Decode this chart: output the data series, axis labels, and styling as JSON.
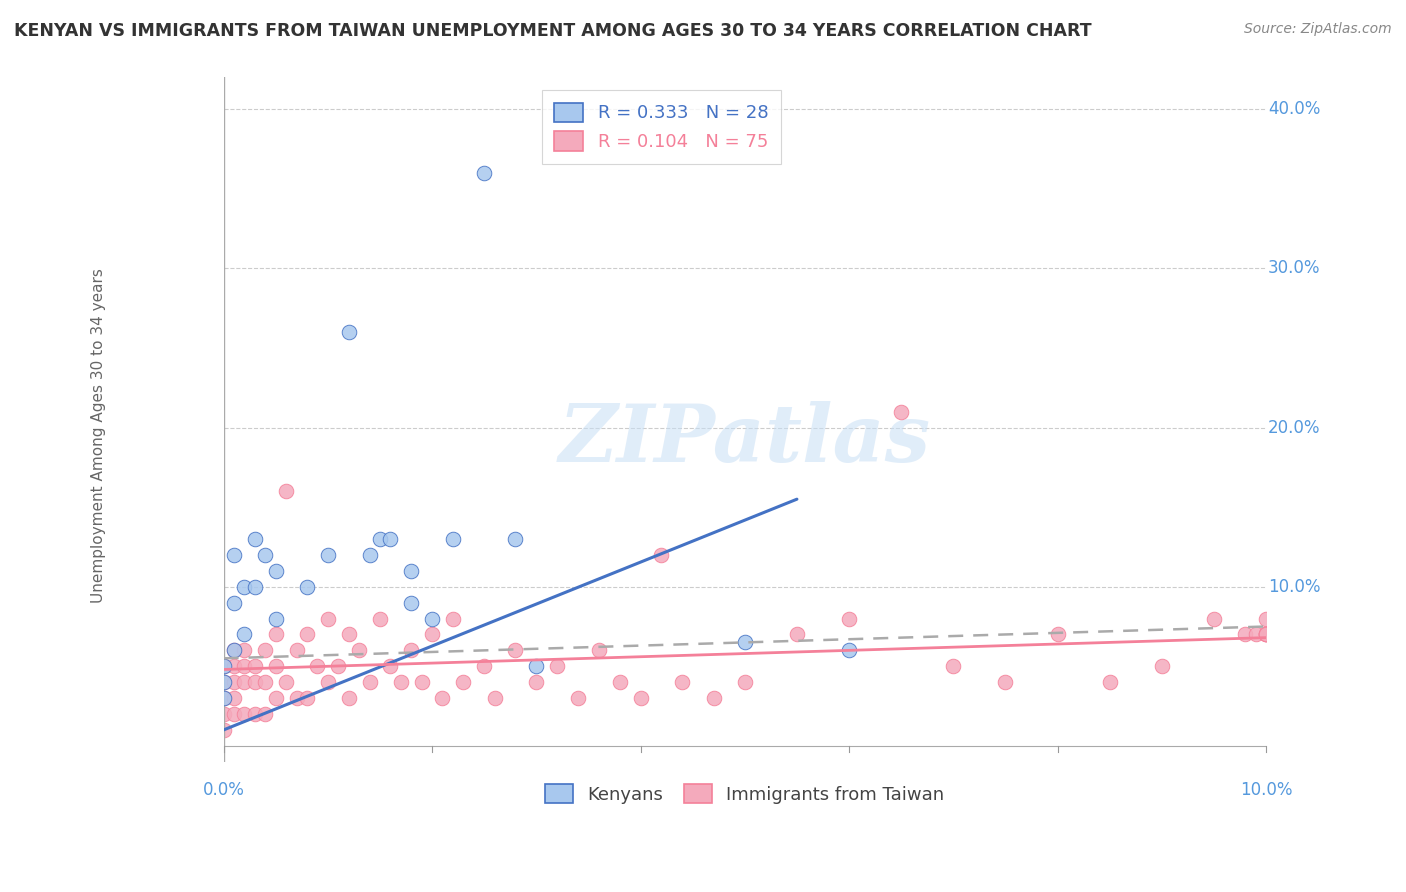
{
  "title": "KENYAN VS IMMIGRANTS FROM TAIWAN UNEMPLOYMENT AMONG AGES 30 TO 34 YEARS CORRELATION CHART",
  "source": "Source: ZipAtlas.com",
  "ylabel": "Unemployment Among Ages 30 to 34 years",
  "xlim": [
    0.0,
    0.1
  ],
  "ylim": [
    -0.01,
    0.42
  ],
  "blue_R": 0.333,
  "blue_N": 28,
  "pink_R": 0.104,
  "pink_N": 75,
  "blue_color": "#A8C8EE",
  "pink_color": "#F4AABC",
  "blue_line_color": "#4472C4",
  "pink_line_color": "#F48099",
  "title_color": "#333333",
  "axis_label_color": "#5599DD",
  "legend_label_blue": "R = 0.333   N = 28",
  "legend_label_pink": "R = 0.104   N = 75",
  "bottom_legend_blue": "Kenyans",
  "bottom_legend_pink": "Immigrants from Taiwan",
  "blue_scatter_x": [
    0.0,
    0.0,
    0.0,
    0.001,
    0.001,
    0.001,
    0.002,
    0.002,
    0.003,
    0.003,
    0.004,
    0.005,
    0.005,
    0.008,
    0.01,
    0.012,
    0.014,
    0.015,
    0.016,
    0.018,
    0.018,
    0.02,
    0.022,
    0.025,
    0.028,
    0.03,
    0.05,
    0.06
  ],
  "blue_scatter_y": [
    0.05,
    0.04,
    0.03,
    0.09,
    0.06,
    0.12,
    0.1,
    0.07,
    0.13,
    0.1,
    0.12,
    0.11,
    0.08,
    0.1,
    0.12,
    0.26,
    0.12,
    0.13,
    0.13,
    0.11,
    0.09,
    0.08,
    0.13,
    0.36,
    0.13,
    0.05,
    0.065,
    0.06
  ],
  "pink_scatter_x": [
    0.0,
    0.0,
    0.0,
    0.0,
    0.0,
    0.001,
    0.001,
    0.001,
    0.001,
    0.001,
    0.002,
    0.002,
    0.002,
    0.002,
    0.003,
    0.003,
    0.003,
    0.004,
    0.004,
    0.004,
    0.005,
    0.005,
    0.005,
    0.006,
    0.006,
    0.007,
    0.007,
    0.008,
    0.008,
    0.009,
    0.01,
    0.01,
    0.011,
    0.012,
    0.012,
    0.013,
    0.014,
    0.015,
    0.016,
    0.017,
    0.018,
    0.019,
    0.02,
    0.021,
    0.022,
    0.023,
    0.025,
    0.026,
    0.028,
    0.03,
    0.032,
    0.034,
    0.036,
    0.038,
    0.04,
    0.042,
    0.044,
    0.047,
    0.05,
    0.055,
    0.06,
    0.065,
    0.07,
    0.075,
    0.08,
    0.085,
    0.09,
    0.095,
    0.098,
    0.099,
    0.1,
    0.1,
    0.1,
    0.1,
    0.1
  ],
  "pink_scatter_y": [
    0.05,
    0.04,
    0.03,
    0.02,
    0.01,
    0.06,
    0.05,
    0.04,
    0.03,
    0.02,
    0.06,
    0.05,
    0.04,
    0.02,
    0.05,
    0.04,
    0.02,
    0.06,
    0.04,
    0.02,
    0.07,
    0.05,
    0.03,
    0.16,
    0.04,
    0.06,
    0.03,
    0.07,
    0.03,
    0.05,
    0.08,
    0.04,
    0.05,
    0.07,
    0.03,
    0.06,
    0.04,
    0.08,
    0.05,
    0.04,
    0.06,
    0.04,
    0.07,
    0.03,
    0.08,
    0.04,
    0.05,
    0.03,
    0.06,
    0.04,
    0.05,
    0.03,
    0.06,
    0.04,
    0.03,
    0.12,
    0.04,
    0.03,
    0.04,
    0.07,
    0.08,
    0.21,
    0.05,
    0.04,
    0.07,
    0.04,
    0.05,
    0.08,
    0.07,
    0.07,
    0.08,
    0.07,
    0.07,
    0.07,
    0.07
  ],
  "ytick_vals": [
    0.1,
    0.2,
    0.3,
    0.4
  ],
  "ytick_labels": [
    "10.0%",
    "20.0%",
    "30.0%",
    "40.0%"
  ]
}
